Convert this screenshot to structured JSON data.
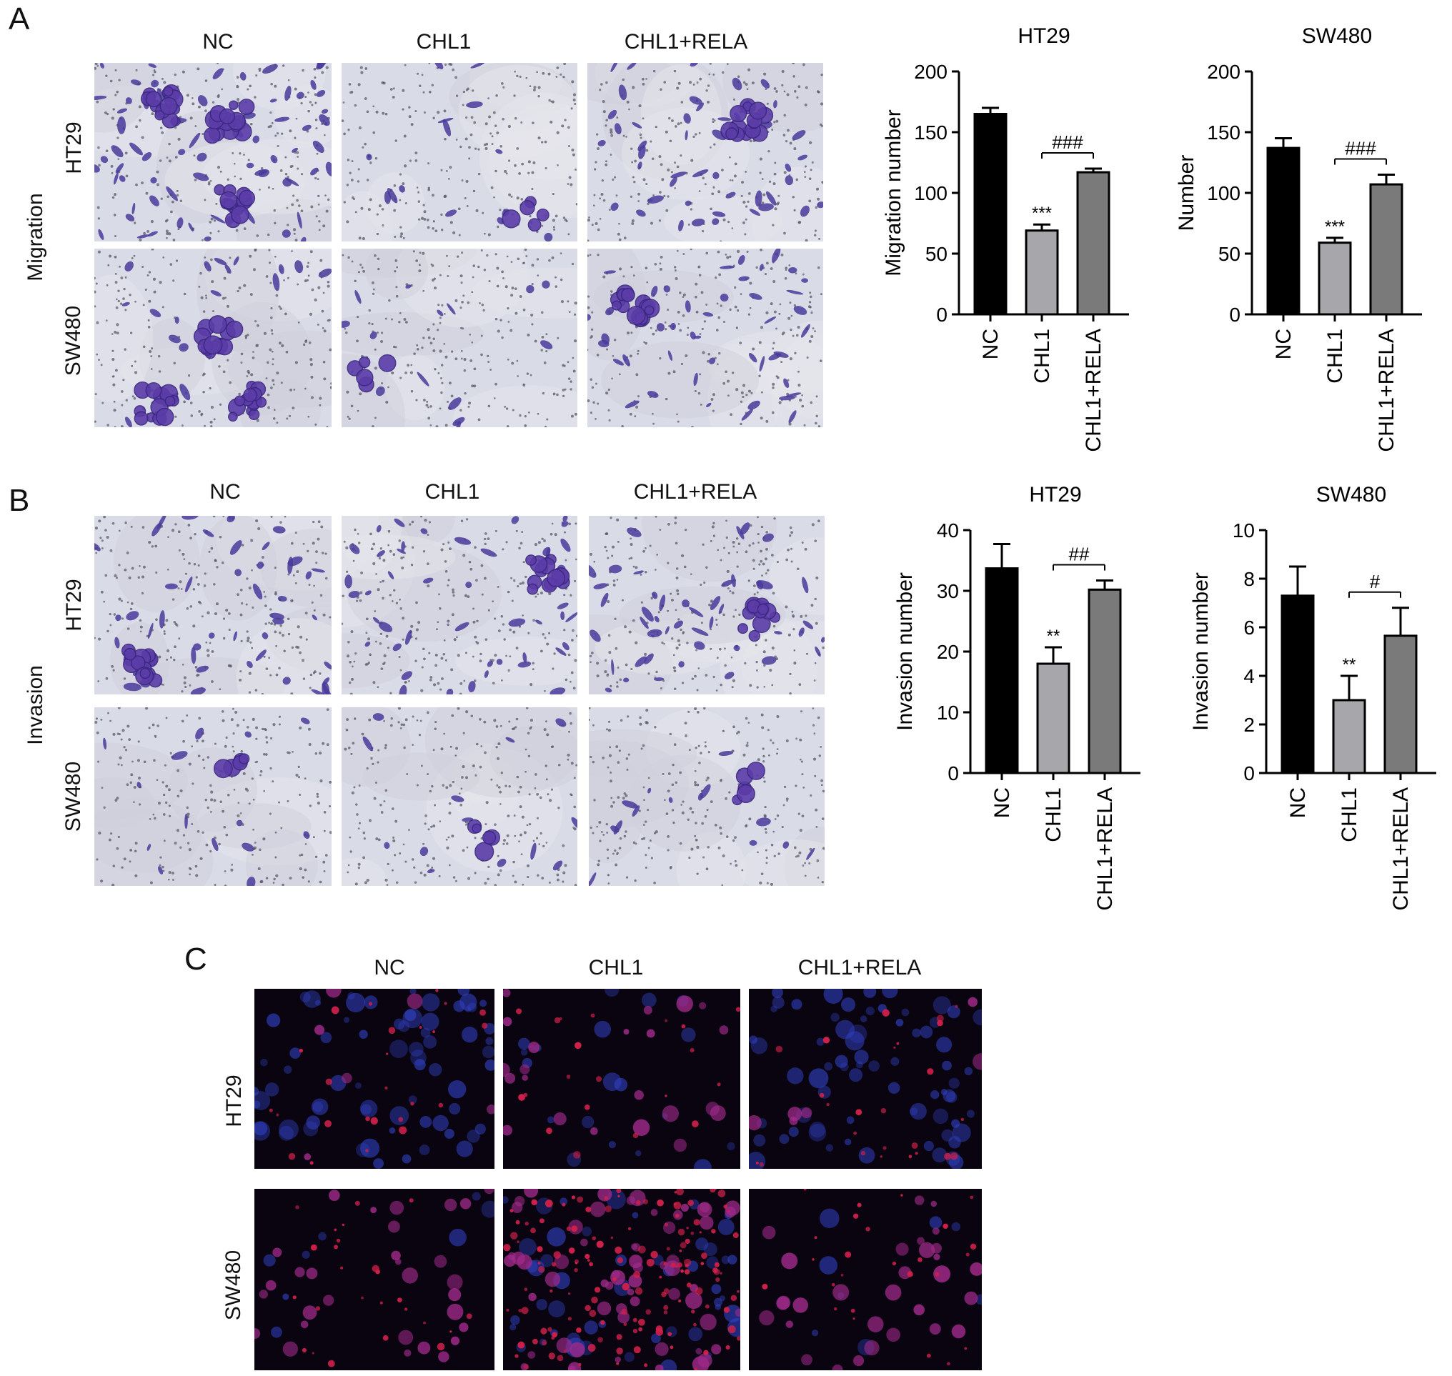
{
  "panels": {
    "A": {
      "letter": "A",
      "condition_label": "Migration",
      "columns": [
        "NC",
        "CHL1",
        "CHL1+RELA"
      ],
      "rows": [
        "HT29",
        "SW480"
      ]
    },
    "B": {
      "letter": "B",
      "condition_label": "Invasion",
      "columns": [
        "NC",
        "CHL1",
        "CHL1+RELA"
      ],
      "rows": [
        "HT29",
        "SW480"
      ]
    },
    "C": {
      "letter": "C",
      "columns": [
        "NC",
        "CHL1",
        "CHL1+RELA"
      ],
      "rows": [
        "HT29",
        "SW480"
      ]
    }
  },
  "colors": {
    "stain_bg": "#d9dbe6",
    "stain_cell": "#4a3a9a",
    "fluor_bg": "#0a0410",
    "fluor_red": "#d0204a",
    "fluor_blue": "#3040c0",
    "bar_nc": "#000000",
    "bar_chl1": "#a6a6ab",
    "bar_rela": "#7a7a7a"
  },
  "chart_data": [
    {
      "type": "bar",
      "title": "HT29",
      "ylabel": "Migration number",
      "categories": [
        "NC",
        "CHL1",
        "CHL1+RELA"
      ],
      "values": [
        165,
        69,
        117
      ],
      "errors": [
        5,
        5,
        3
      ],
      "ylim": [
        0,
        200
      ],
      "yticks": [
        0,
        50,
        100,
        150,
        200
      ],
      "star_label": "***",
      "hash_label": "###"
    },
    {
      "type": "bar",
      "title": "SW480",
      "ylabel": "Number",
      "categories": [
        "NC",
        "CHL1",
        "CHL1+RELA"
      ],
      "values": [
        137,
        59,
        107
      ],
      "errors": [
        8,
        4,
        8
      ],
      "ylim": [
        0,
        200
      ],
      "yticks": [
        0,
        50,
        100,
        150,
        200
      ],
      "star_label": "***",
      "hash_label": "###"
    },
    {
      "type": "bar",
      "title": "HT29",
      "ylabel": "Invasion number",
      "categories": [
        "NC",
        "CHL1",
        "CHL1+RELA"
      ],
      "values": [
        33.7,
        18,
        30.2
      ],
      "errors": [
        4,
        2.7,
        1.5
      ],
      "ylim": [
        0,
        40
      ],
      "yticks": [
        0,
        10,
        20,
        30,
        40
      ],
      "star_label": "**",
      "hash_label": "##"
    },
    {
      "type": "bar",
      "title": "SW480",
      "ylabel": "Invasion number",
      "categories": [
        "NC",
        "CHL1",
        "CHL1+RELA"
      ],
      "values": [
        7.3,
        3.0,
        5.65
      ],
      "errors": [
        1.2,
        1.0,
        1.15
      ],
      "ylim": [
        0,
        10
      ],
      "yticks": [
        0,
        2,
        4,
        6,
        8,
        10
      ],
      "star_label": "**",
      "hash_label": "#"
    }
  ]
}
